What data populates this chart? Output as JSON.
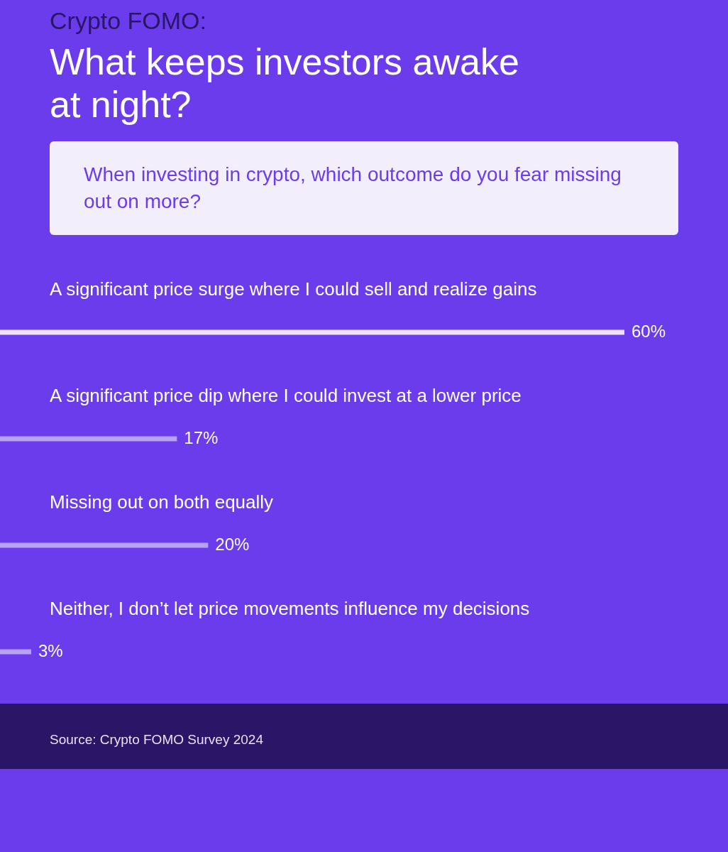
{
  "chart_data": {
    "type": "bar",
    "orientation": "horizontal",
    "title": "Crypto FOMO:",
    "subtitle": "What keeps investors awake at night?",
    "annotations": [
      "When investing in crypto, which outcome do you fear missing out on more?",
      "Source: Crypto FOMO Survey 2024"
    ],
    "categories": [
      "A significant price surge where I could sell and realize gains",
      "A significant price dip where I could invest at a lower price",
      "Missing out on both equally",
      "Neither, I don’t let price movements influence my decisions"
    ],
    "values": [
      60,
      17,
      20,
      3
    ],
    "colors": [
      "#efe3fb",
      "#b8a2f5",
      "#b8a2f5",
      "#b8a2f5"
    ],
    "value_labels": [
      "60%",
      "17%",
      "20%",
      "3%"
    ]
  }
}
